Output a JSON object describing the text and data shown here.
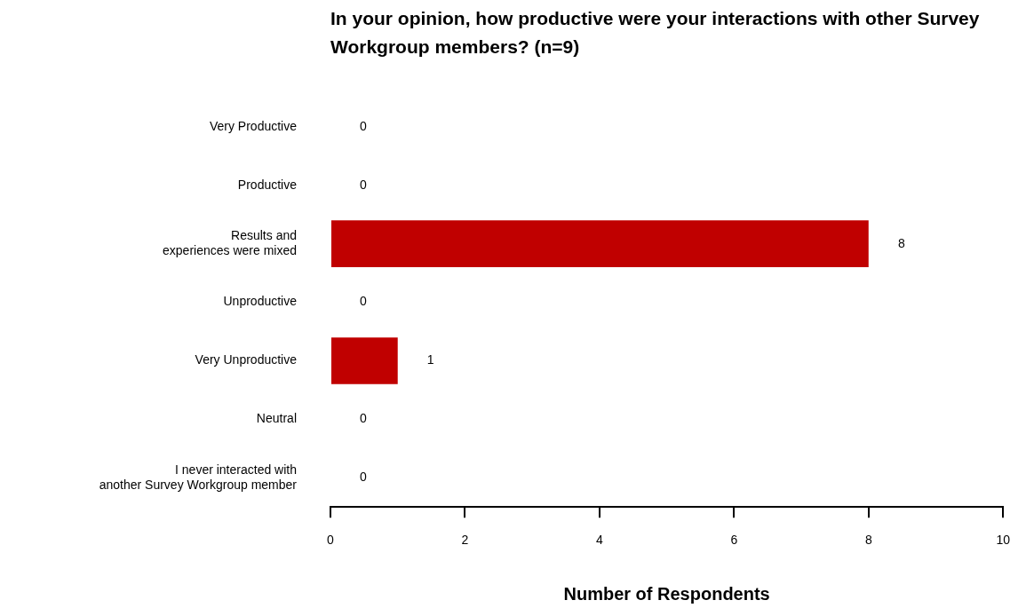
{
  "chart_data": {
    "type": "bar",
    "orientation": "horizontal",
    "title": "In your opinion, how productive were your interactions with other Survey Workgroup members? (n=9)",
    "xlabel": "Number of Respondents",
    "categories": [
      "Very Productive",
      "Productive",
      "Results and\nexperiences were mixed",
      "Unproductive",
      "Very Unproductive",
      "Neutral",
      "I never interacted with\nanother Survey Workgroup member"
    ],
    "values": [
      0,
      0,
      8,
      0,
      1,
      0,
      0
    ],
    "color": "#c00000",
    "xlim": [
      0,
      10
    ],
    "xticks": [
      0,
      2,
      4,
      6,
      8,
      10
    ],
    "grid": false,
    "legend": false,
    "data_labels": true
  }
}
